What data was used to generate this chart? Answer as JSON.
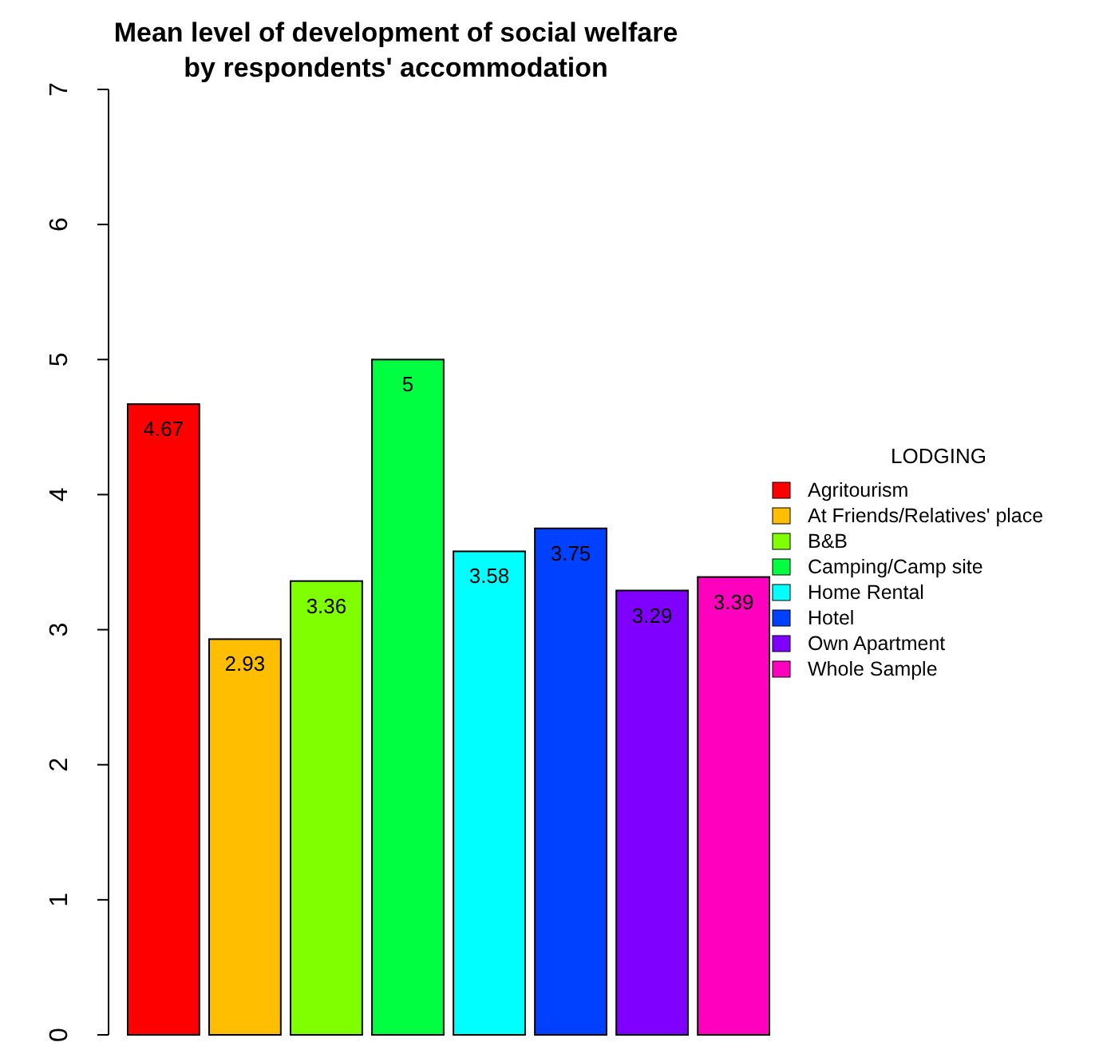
{
  "chart_data": {
    "type": "bar",
    "title": "Mean level of development of social welfare\nby respondents' accommodation",
    "legend_title": "LODGING",
    "categories": [
      null
    ],
    "series": [
      {
        "name": "Agritourism",
        "color": "#ff0000",
        "values": [
          4.67
        ]
      },
      {
        "name": "At Friends/Relatives' place",
        "color": "#ffbf00",
        "values": [
          2.93
        ]
      },
      {
        "name": "B&B",
        "color": "#80ff00",
        "values": [
          3.36
        ]
      },
      {
        "name": "Camping/Camp site",
        "color": "#00ff40",
        "values": [
          5
        ]
      },
      {
        "name": "Home Rental",
        "color": "#00ffff",
        "values": [
          3.58
        ]
      },
      {
        "name": "Hotel",
        "color": "#0040ff",
        "values": [
          3.75
        ]
      },
      {
        "name": "Own Apartment",
        "color": "#8000ff",
        "values": [
          3.29
        ]
      },
      {
        "name": "Whole Sample",
        "color": "#ff00bf",
        "values": [
          3.39
        ]
      }
    ],
    "ylim": [
      0,
      7
    ],
    "yticks": [
      0,
      1,
      2,
      3,
      4,
      5,
      6,
      7
    ],
    "data_labels": true,
    "legend": "right",
    "tick_labels": "y",
    "grid": false
  }
}
